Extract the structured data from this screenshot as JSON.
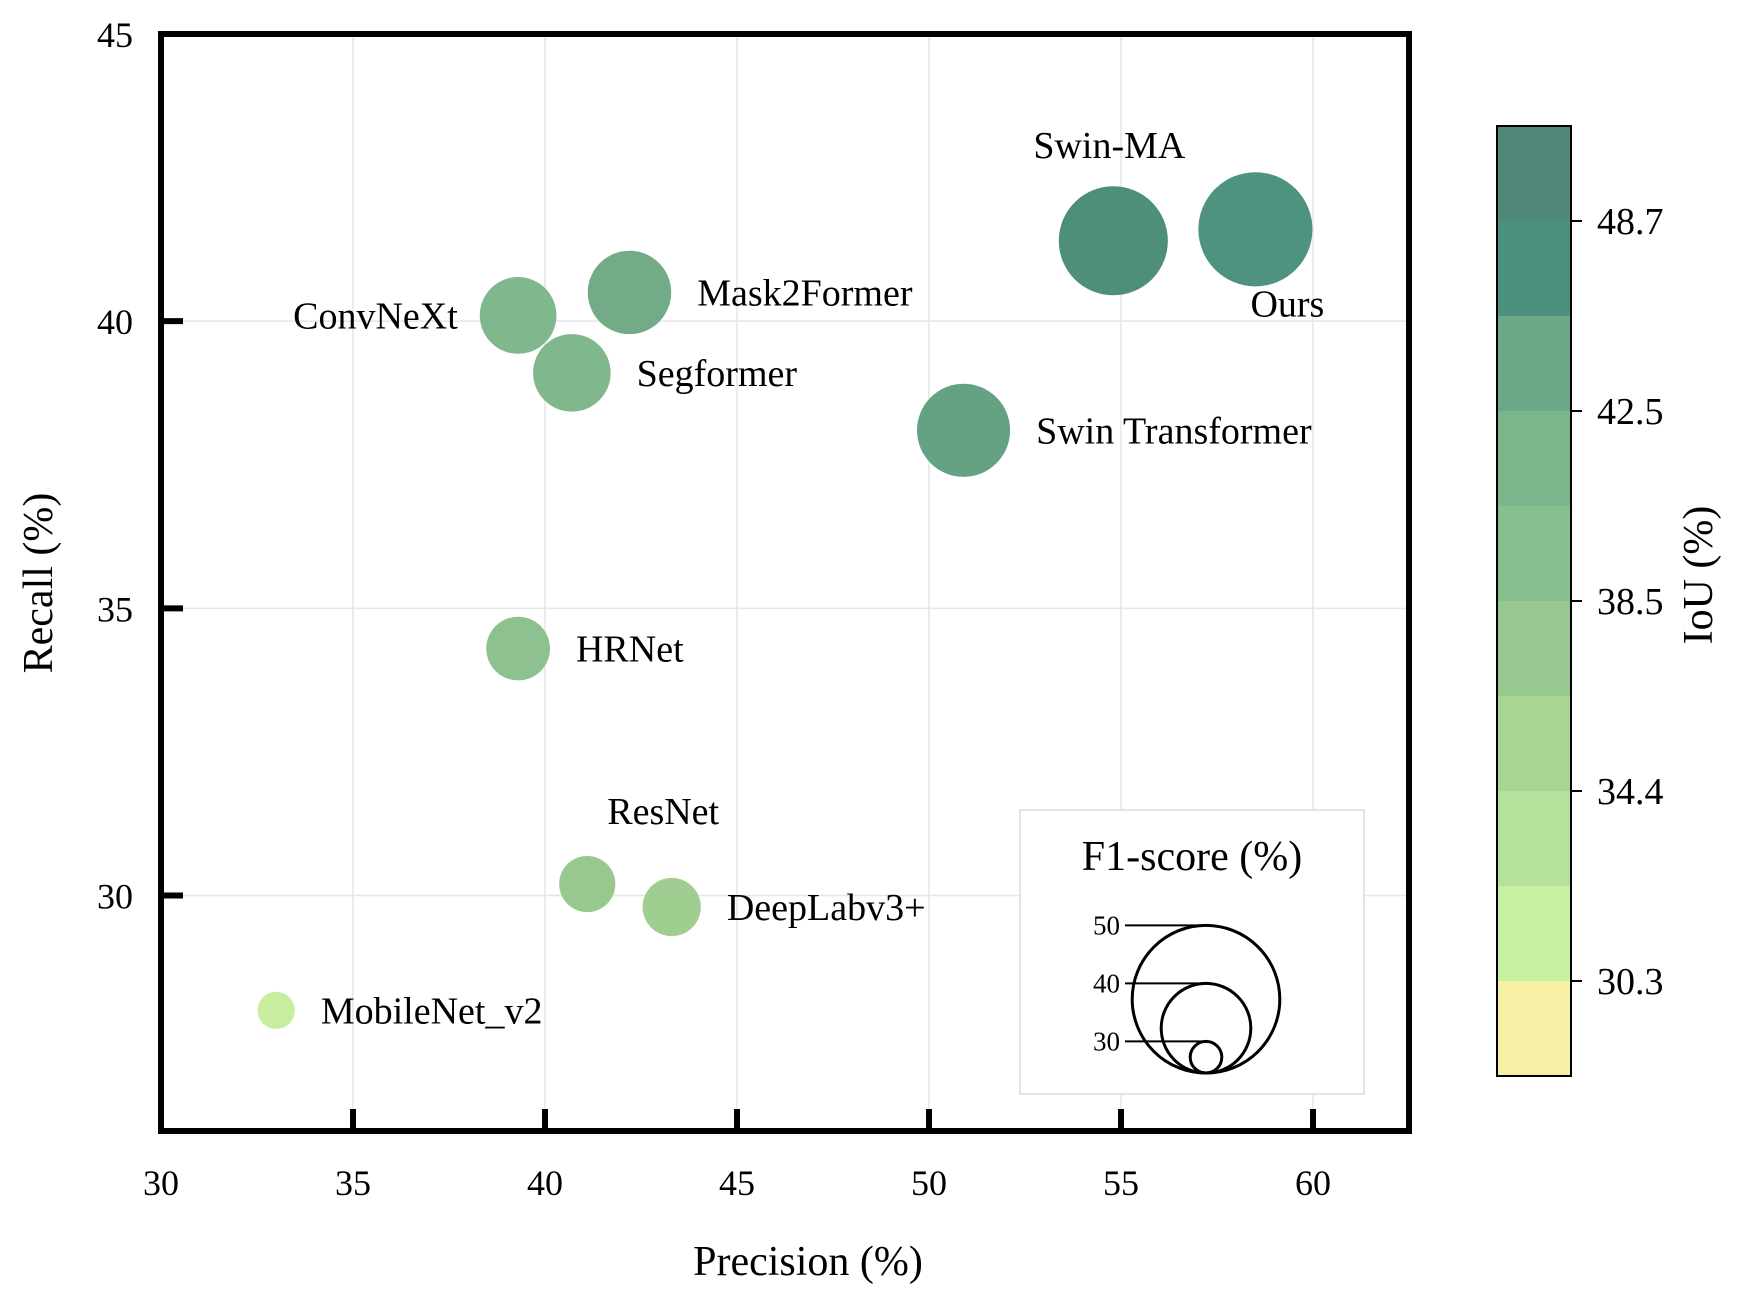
{
  "chart_data": {
    "type": "scatter",
    "subtype": "bubble",
    "xlabel": "Precision (%)",
    "ylabel": "Recall (%)",
    "xlim": [
      30,
      62.5
    ],
    "ylim": [
      25.9,
      45
    ],
    "xticks": [
      "30",
      "35",
      "40",
      "45",
      "50",
      "55",
      "60"
    ],
    "yticks": [
      "30",
      "35",
      "40",
      "45"
    ],
    "grid": true,
    "points": [
      {
        "name": "Swin-MA",
        "precision": 54.8,
        "recall": 41.4,
        "f1": 47.4,
        "iou": 48.0,
        "color": "#4e8f7c",
        "label_pos": "top-left"
      },
      {
        "name": "Ours",
        "precision": 58.5,
        "recall": 41.6,
        "f1": 48.6,
        "iou": 49.0,
        "color": "#4e9380",
        "label_pos": "bottom"
      },
      {
        "name": "Mask2Former",
        "precision": 42.2,
        "recall": 40.5,
        "f1": 41.3,
        "iou": 42.5,
        "color": "#73ab86",
        "label_pos": "right"
      },
      {
        "name": "ConvNeXt",
        "precision": 39.3,
        "recall": 40.1,
        "f1": 39.7,
        "iou": 40.5,
        "color": "#80b78c",
        "label_pos": "left"
      },
      {
        "name": "Segformer",
        "precision": 40.7,
        "recall": 39.1,
        "f1": 39.9,
        "iou": 40.8,
        "color": "#80b78c",
        "label_pos": "right"
      },
      {
        "name": "Swin Transformer",
        "precision": 50.9,
        "recall": 38.1,
        "f1": 43.6,
        "iou": 43.5,
        "color": "#64a283",
        "label_pos": "right"
      },
      {
        "name": "HRNet",
        "precision": 39.3,
        "recall": 34.3,
        "f1": 36.6,
        "iou": 38.0,
        "color": "#8dc18f",
        "label_pos": "right"
      },
      {
        "name": "ResNet",
        "precision": 41.1,
        "recall": 30.2,
        "f1": 34.8,
        "iou": 36.5,
        "color": "#97c98f",
        "label_pos": "top"
      },
      {
        "name": "DeepLabv3+",
        "precision": 43.3,
        "recall": 29.8,
        "f1": 35.3,
        "iou": 36.0,
        "color": "#9fce90",
        "label_pos": "right"
      },
      {
        "name": "MobileNet_v2",
        "precision": 33.0,
        "recall": 28.0,
        "f1": 30.3,
        "iou": 31.5,
        "color": "#c6ee9e",
        "label_pos": "right"
      }
    ],
    "size_legend": {
      "title": "F1-score (%)",
      "values": [
        50,
        40,
        30
      ],
      "labels": [
        "50",
        "40",
        "30"
      ]
    },
    "colorbar": {
      "label": "IoU (%)",
      "ticks": [
        "48.7",
        "42.5",
        "38.5",
        "34.4",
        "30.3"
      ],
      "colors": [
        "#4f8878",
        "#4c9180",
        "#6aa886",
        "#7bb58b",
        "#88bf8e",
        "#97c88f",
        "#a8d692",
        "#b6e19a",
        "#c6f0a2",
        "#f5f0a3"
      ]
    }
  }
}
